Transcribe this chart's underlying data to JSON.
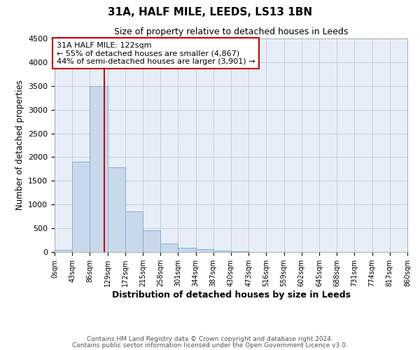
{
  "title": "31A, HALF MILE, LEEDS, LS13 1BN",
  "subtitle": "Size of property relative to detached houses in Leeds",
  "xlabel": "Distribution of detached houses by size in Leeds",
  "ylabel": "Number of detached properties",
  "bin_width": 43,
  "num_bins": 20,
  "bar_values": [
    50,
    1900,
    3500,
    1780,
    850,
    460,
    175,
    90,
    55,
    25,
    10,
    5,
    2,
    1,
    0,
    0,
    0,
    0,
    0,
    0
  ],
  "bar_color": "#c9d9ec",
  "bar_edge_color": "#7fafd4",
  "ylim": [
    0,
    4500
  ],
  "yticks": [
    0,
    500,
    1000,
    1500,
    2000,
    2500,
    3000,
    3500,
    4000,
    4500
  ],
  "property_size": 122,
  "vline_color": "#cc0000",
  "annotation_title": "31A HALF MILE: 122sqm",
  "annotation_line1": "← 55% of detached houses are smaller (4,867)",
  "annotation_line2": "44% of semi-detached houses are larger (3,901) →",
  "annotation_box_color": "#ffffff",
  "annotation_box_edge": "#cc0000",
  "grid_color": "#c0ccdd",
  "background_color": "#e8eef7",
  "footer_line1": "Contains HM Land Registry data © Crown copyright and database right 2024.",
  "footer_line2": "Contains public sector information licensed under the Open Government Licence v3.0.",
  "x_tick_labels": [
    "0sqm",
    "43sqm",
    "86sqm",
    "129sqm",
    "172sqm",
    "215sqm",
    "258sqm",
    "301sqm",
    "344sqm",
    "387sqm",
    "430sqm",
    "473sqm",
    "516sqm",
    "559sqm",
    "602sqm",
    "645sqm",
    "688sqm",
    "731sqm",
    "774sqm",
    "817sqm",
    "860sqm"
  ]
}
